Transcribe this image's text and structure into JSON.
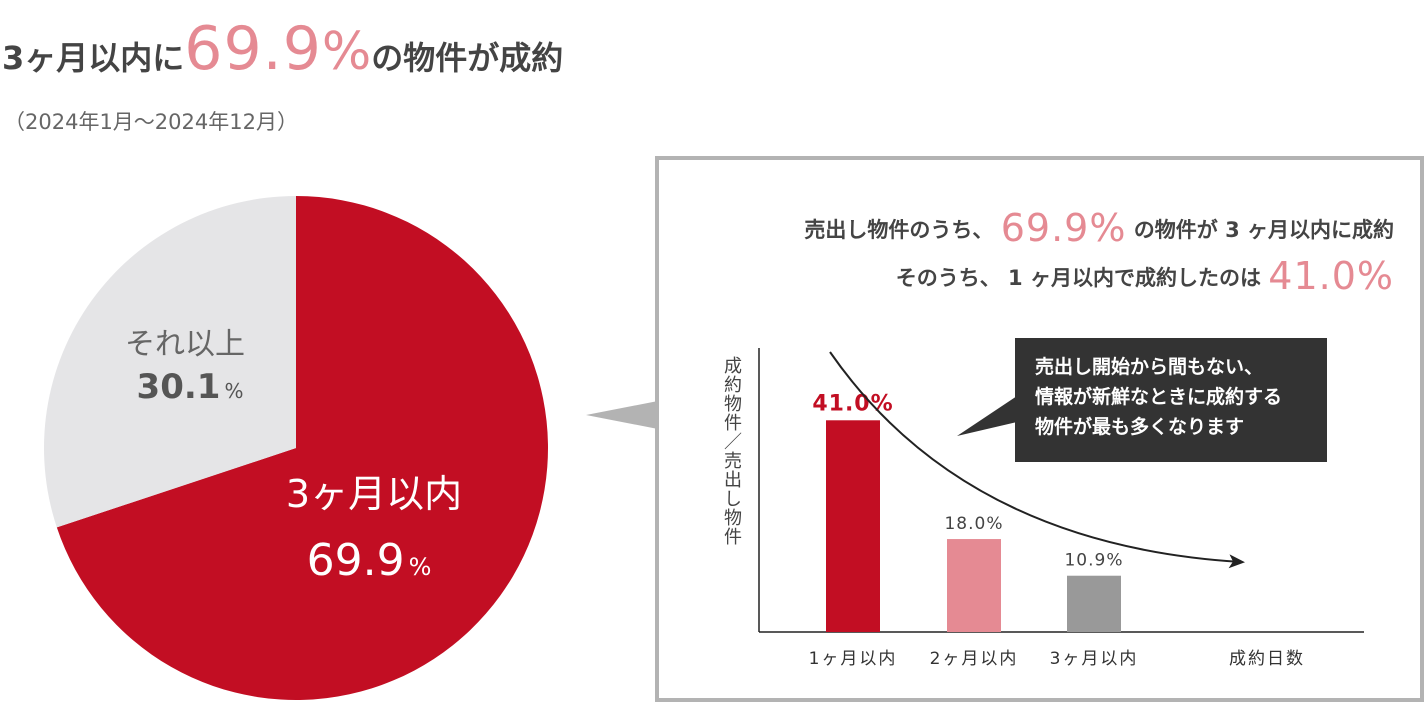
{
  "headline": {
    "prefix": "3ヶ月以内に",
    "number": "69.9",
    "unit": "%",
    "suffix": "の物件が成約"
  },
  "period": "（2024年1月〜2024年12月）",
  "colors": {
    "accent_red": "#c20e23",
    "accent_pink": "#e58a93",
    "gray_slice": "#e5e5e7",
    "gray_bar": "#999999",
    "dark_note": "#333333",
    "frame": "#b3b3b3"
  },
  "summary": {
    "line1_before": "売出し物件のうち、",
    "line1_value": "69.9%",
    "line1_after": "の物件が",
    "line1_num": "3",
    "line1_end": "ヶ月以内に成約",
    "line2_before": "そのうち、",
    "line2_num": "1",
    "line2_after": "ヶ月以内で成約したのは",
    "line2_value": "41.0%"
  },
  "note": {
    "line1": "売出し開始から間もない、",
    "line2": "情報が新鮮なときに成約する",
    "line3": "物件が最も多くなります"
  },
  "chart_data": [
    {
      "type": "pie",
      "slices": [
        {
          "label": "3ヶ月以内",
          "value": 69.9,
          "value_text": "69.9",
          "unit": "%",
          "color": "#c20e23"
        },
        {
          "label": "それ以上",
          "value": 30.1,
          "value_text": "30.1",
          "unit": "%",
          "color": "#e5e5e7"
        }
      ]
    },
    {
      "type": "bar",
      "ylabel": "成約物件／売出し物件",
      "xlabel": "成約日数",
      "categories": [
        "1ヶ月以内",
        "2ヶ月以内",
        "3ヶ月以内"
      ],
      "values": [
        41.0,
        18.0,
        10.9
      ],
      "value_labels": [
        "41.0%",
        "18.0%",
        "10.9%"
      ],
      "colors": [
        "#c20e23",
        "#e58a93",
        "#999999"
      ],
      "ylim": [
        0,
        55
      ],
      "trend": "decreasing"
    }
  ]
}
